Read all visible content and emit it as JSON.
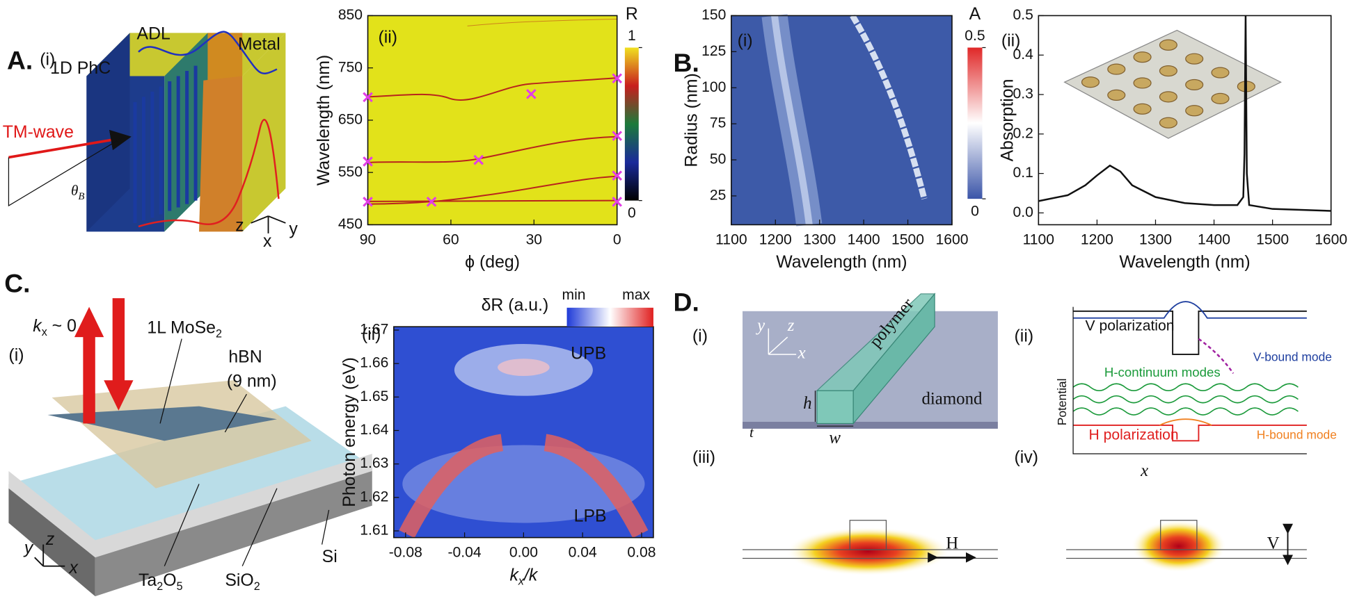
{
  "panel_a": {
    "letter": "A.",
    "sub": "(i)",
    "phc": "1D PhC",
    "adl": "ADL",
    "metal": "Metal",
    "wave": "TM-wave",
    "angle": "θ",
    "angle_sub": "B",
    "axis_z": "z",
    "axis_x": "x",
    "axis_y": "y"
  },
  "panel_b": {
    "letter": "B."
  },
  "panel_c": {
    "letter": "C.",
    "sub": "(i)",
    "k": "k",
    "k_sub": "x",
    "k_rest": " ~ 0",
    "mose": "1L MoSe",
    "mose_sub": "2",
    "hbn": "hBN",
    "hbn_thick": "(9 nm)",
    "ta": "Ta",
    "ta_sub": "2",
    "o": "O",
    "o_sub": "5",
    "sio": "SiO",
    "sio_sub": "2",
    "si": "Si",
    "axis_y": "y",
    "axis_z": "z",
    "axis_x": "x"
  },
  "panel_d": {
    "letter": "D.",
    "sub_i": "(i)",
    "sub_ii": "(ii)",
    "sub_iii": "(iii)",
    "sub_iv": "(iv)",
    "i": {
      "y": "y",
      "z": "z",
      "x": "x",
      "polymer": "polymer",
      "diamond": "diamond",
      "h": "h",
      "t": "t",
      "w": "w"
    },
    "ii": {
      "v_pol": "V polarization",
      "v_mode": "V-bound mode",
      "h_cont": "H-continuum modes",
      "potential": "Potential",
      "h_pol": "H polarization",
      "h_mode": "H-bound mode",
      "x": "x"
    },
    "iii": {
      "h": "H"
    },
    "iv": {
      "v": "V"
    }
  },
  "chart_data": [
    {
      "type": "heatmap",
      "panel_label": "(ii)",
      "xlabel": "ϕ (deg)",
      "ylabel": "Wavelength (nm)",
      "xlim": [
        90,
        0
      ],
      "xticks": [
        90,
        60,
        30,
        0
      ],
      "ylim": [
        450,
        850
      ],
      "yticks": [
        450,
        550,
        650,
        750,
        850
      ],
      "colorbar": {
        "label": "R",
        "lim": [
          0,
          1
        ],
        "ticks": [
          0,
          1
        ]
      },
      "markers": {
        "color": "#e23ee6",
        "x": [
          90,
          31,
          0,
          90,
          50,
          0,
          0,
          90,
          67,
          0
        ],
        "y": [
          694,
          700,
          730,
          571,
          574,
          620,
          544,
          494,
          494,
          494
        ]
      }
    },
    {
      "type": "heatmap",
      "panel_label": "(i)",
      "xlabel": "Wavelength (nm)",
      "ylabel": "Radius (nm)",
      "xlim": [
        1100,
        1600
      ],
      "xticks": [
        1100,
        1200,
        1300,
        1400,
        1500,
        1600
      ],
      "ylim": [
        5,
        150
      ],
      "yticks": [
        25,
        50,
        75,
        100,
        125,
        150
      ],
      "colorbar": {
        "label": "A",
        "lim": [
          0,
          0.5
        ],
        "ticks": [
          0,
          0.5
        ]
      }
    },
    {
      "type": "line",
      "panel_label": "(ii)",
      "xlabel": "Wavelength (nm)",
      "ylabel": "Absorption",
      "color": "#111111",
      "x": [
        1100,
        1150,
        1180,
        1200,
        1222,
        1240,
        1260,
        1300,
        1350,
        1400,
        1440,
        1450,
        1452,
        1454,
        1456,
        1460,
        1500,
        1600
      ],
      "values": [
        0.03,
        0.045,
        0.07,
        0.095,
        0.12,
        0.105,
        0.07,
        0.04,
        0.025,
        0.02,
        0.02,
        0.04,
        0.15,
        0.5,
        0.1,
        0.02,
        0.01,
        0.005
      ],
      "xlim": [
        1100,
        1600
      ],
      "xticks": [
        1100,
        1200,
        1300,
        1400,
        1500,
        1600
      ],
      "ylim": [
        -0.03,
        0.5
      ],
      "yticks": [
        {
          "value": 0,
          "label": "0.0"
        },
        0.1,
        0.2,
        0.3,
        0.4,
        0.5
      ]
    },
    {
      "type": "heatmap",
      "panel_label": "(ii)",
      "xlabel": "k",
      "xlabel_sub": "x",
      "xlabel_rest": "/k",
      "ylabel": "Photon energy (eV)",
      "xlim": [
        -0.088,
        0.088
      ],
      "xticks": [
        -0.08,
        -0.04,
        {
          "value": 0,
          "label": "0.00"
        },
        0.04,
        0.08
      ],
      "ylim": [
        1.608,
        1.671
      ],
      "yticks": [
        1.61,
        1.62,
        1.63,
        1.64,
        1.65,
        1.66,
        1.67
      ],
      "colorbar": {
        "label": "δR (a.u.)",
        "min_label": "min",
        "max_label": "max"
      },
      "annotations": [
        "UPB",
        "LPB"
      ]
    }
  ]
}
